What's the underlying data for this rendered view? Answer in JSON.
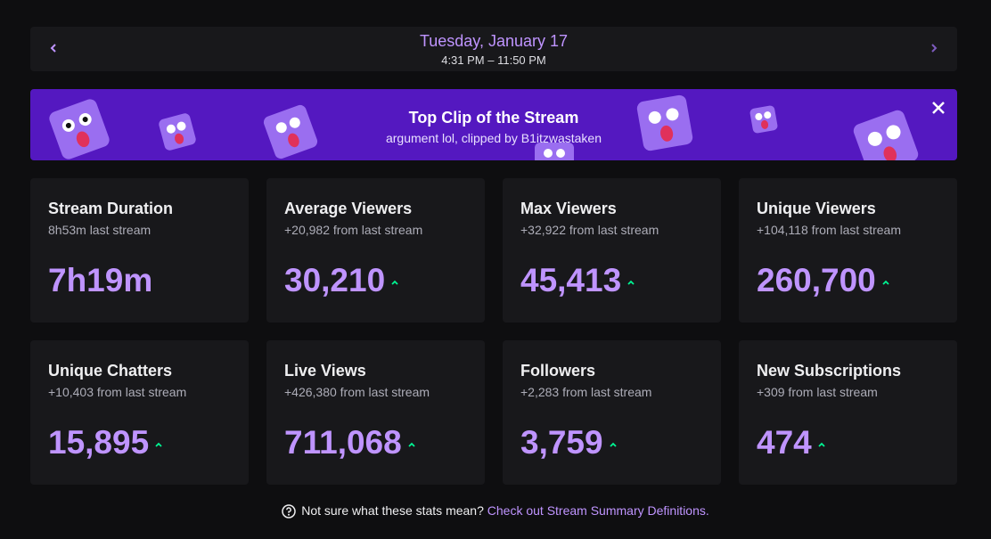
{
  "header": {
    "date": "Tuesday, January 17",
    "time_range": "4:31 PM – 11:50 PM"
  },
  "banner": {
    "title": "Top Clip of the Stream",
    "subtitle": "argument lol, clipped by B1itzwastaken"
  },
  "stats": [
    {
      "title": "Stream Duration",
      "comparison": "8h53m last stream",
      "value": "7h19m"
    },
    {
      "title": "Average Viewers",
      "comparison": "+20,982 from last stream",
      "value": "30,210",
      "trend": "up"
    },
    {
      "title": "Max Viewers",
      "comparison": "+32,922 from last stream",
      "value": "45,413",
      "trend": "up"
    },
    {
      "title": "Unique Viewers",
      "comparison": "+104,118 from last stream",
      "value": "260,700",
      "trend": "up"
    },
    {
      "title": "Unique Chatters",
      "comparison": "+10,403 from last stream",
      "value": "15,895",
      "trend": "up"
    },
    {
      "title": "Live Views",
      "comparison": "+426,380 from last stream",
      "value": "711,068",
      "trend": "up"
    },
    {
      "title": "Followers",
      "comparison": "+2,283 from last stream",
      "value": "3,759",
      "trend": "up"
    },
    {
      "title": "New Subscriptions",
      "comparison": "+309 from last stream",
      "value": "474",
      "trend": "up"
    }
  ],
  "footer": {
    "question": "Not sure what these stats mean?",
    "link": "Check out Stream Summary Definitions."
  }
}
